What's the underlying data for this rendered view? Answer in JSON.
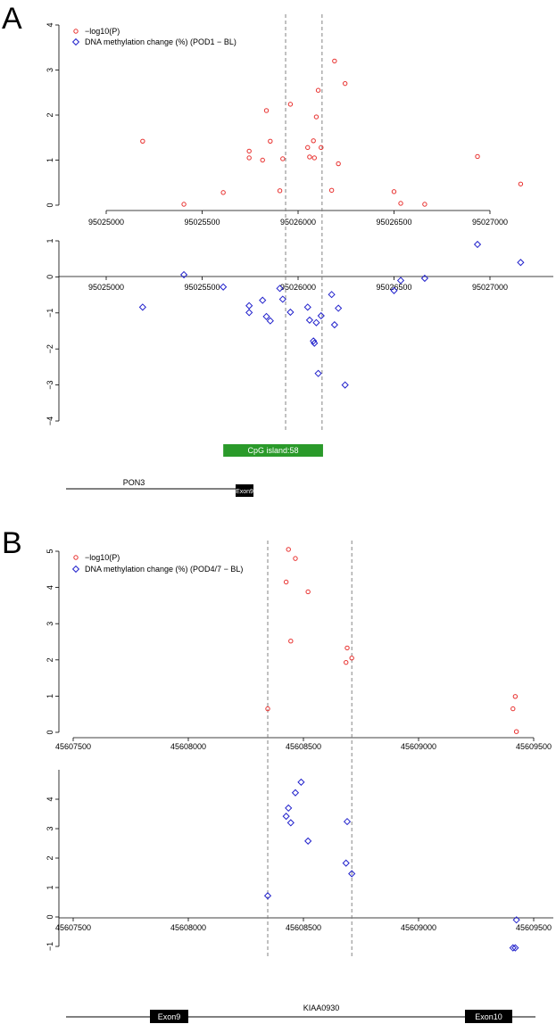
{
  "chart_data": [
    {
      "panel": "A",
      "type": "scatter",
      "title": "",
      "series": [
        {
          "name": "−log10(P)",
          "color": "#e8302e",
          "marker": "circle",
          "points": [
            [
              95025190,
              1.42
            ],
            [
              95025405,
              0.02
            ],
            [
              95025610,
              0.28
            ],
            [
              95025745,
              1.2
            ],
            [
              95025745,
              1.05
            ],
            [
              95025815,
              1.0
            ],
            [
              95025835,
              2.1
            ],
            [
              95025855,
              1.42
            ],
            [
              95025905,
              0.32
            ],
            [
              95025920,
              1.03
            ],
            [
              95025960,
              2.24
            ],
            [
              95026050,
              1.28
            ],
            [
              95026060,
              1.07
            ],
            [
              95026080,
              1.43
            ],
            [
              95026085,
              1.05
            ],
            [
              95026095,
              1.96
            ],
            [
              95026105,
              2.55
            ],
            [
              95026120,
              1.28
            ],
            [
              95026175,
              0.33
            ],
            [
              95026190,
              3.2
            ],
            [
              95026210,
              0.92
            ],
            [
              95026245,
              2.7
            ],
            [
              95026500,
              0.3
            ],
            [
              95026535,
              0.04
            ],
            [
              95026660,
              0.02
            ],
            [
              95026935,
              1.08
            ],
            [
              95027160,
              0.47
            ]
          ]
        },
        {
          "name": "DNA methylation change (%) (POD1 − BL)",
          "color": "#2222cc",
          "marker": "diamond",
          "points": [
            [
              95025190,
              -0.84
            ],
            [
              95025405,
              0.06
            ],
            [
              95025610,
              -0.28
            ],
            [
              95025745,
              -0.8
            ],
            [
              95025745,
              -0.99
            ],
            [
              95025815,
              -0.65
            ],
            [
              95025835,
              -1.1
            ],
            [
              95025855,
              -1.22
            ],
            [
              95025905,
              -0.32
            ],
            [
              95025920,
              -0.62
            ],
            [
              95025960,
              -0.98
            ],
            [
              95026050,
              -0.84
            ],
            [
              95026060,
              -1.2
            ],
            [
              95026080,
              -1.78
            ],
            [
              95026085,
              -1.84
            ],
            [
              95026095,
              -1.27
            ],
            [
              95026105,
              -2.68
            ],
            [
              95026120,
              -1.08
            ],
            [
              95026175,
              -0.49
            ],
            [
              95026190,
              -1.33
            ],
            [
              95026210,
              -0.87
            ],
            [
              95026245,
              -3.0
            ],
            [
              95026500,
              -0.38
            ],
            [
              95026535,
              -0.1
            ],
            [
              95026660,
              -0.04
            ],
            [
              95026935,
              0.9
            ],
            [
              95027160,
              0.4
            ]
          ]
        }
      ],
      "x_ticks": [
        "95025000",
        "95025500",
        "95026000",
        "95026500",
        "95027000"
      ],
      "xlim": [
        94024700,
        95027250
      ],
      "top_ylim": [
        0,
        4
      ],
      "top_yticks": [
        "0",
        "1",
        "2",
        "3",
        "4"
      ],
      "bottom_ylim": [
        -4,
        1
      ],
      "bottom_yticks": [
        "−4",
        "−3",
        "−2",
        "−1",
        "0",
        "1"
      ],
      "dashed_lines_x": [
        95025935,
        95026125
      ],
      "cpg_island": {
        "label": "CpG island:58",
        "start": 95025610,
        "end": 95026130,
        "color": "#2a9a2a"
      },
      "gene": {
        "name": "PON3",
        "line_start": 95024700,
        "line_end": 95025750,
        "exon_label": "Exon9",
        "exon_start": 95025680,
        "exon_end": 95025760
      },
      "legend_placement": "top-left"
    },
    {
      "panel": "B",
      "type": "scatter",
      "title": "",
      "series": [
        {
          "name": "−log10(P)",
          "color": "#e8302e",
          "marker": "circle",
          "points": [
            [
              45608345,
              0.65
            ],
            [
              45608425,
              4.15
            ],
            [
              45608435,
              5.05
            ],
            [
              45608445,
              2.52
            ],
            [
              45608465,
              4.8
            ],
            [
              45608520,
              3.88
            ],
            [
              45608685,
              1.93
            ],
            [
              45608690,
              2.33
            ],
            [
              45608710,
              2.05
            ],
            [
              45609410,
              0.65
            ],
            [
              45609420,
              0.99
            ],
            [
              45609425,
              0.02
            ]
          ]
        },
        {
          "name": "DNA methylation change (%) (POD4/7 − BL)",
          "color": "#2222cc",
          "marker": "diamond",
          "points": [
            [
              45608345,
              0.72
            ],
            [
              45608425,
              3.42
            ],
            [
              45608435,
              3.7
            ],
            [
              45608445,
              3.2
            ],
            [
              45608465,
              4.22
            ],
            [
              45608490,
              4.58
            ],
            [
              45608520,
              2.58
            ],
            [
              45608685,
              1.83
            ],
            [
              45608690,
              3.24
            ],
            [
              45608710,
              1.47
            ],
            [
              45609410,
              -1.05
            ],
            [
              45609420,
              -1.05
            ],
            [
              45609425,
              -0.1
            ]
          ]
        }
      ],
      "x_ticks": [
        "45607500",
        "45608000",
        "45608500",
        "45609000",
        "45609500"
      ],
      "xlim": [
        45607440,
        45609600
      ],
      "top_ylim": [
        0,
        5
      ],
      "top_yticks": [
        "0",
        "1",
        "2",
        "3",
        "4",
        "5"
      ],
      "bottom_ylim": [
        -1,
        5
      ],
      "bottom_yticks": [
        "−1",
        "0",
        "1",
        "2",
        "3",
        "4"
      ],
      "dashed_lines_x": [
        45608345,
        45608710
      ],
      "gene": {
        "name": "KIAA0930",
        "line_start": 45607440,
        "line_end": 45609600,
        "exons": [
          {
            "label": "Exon9",
            "start": 45607780,
            "end": 45608050
          },
          {
            "label": "Exon10",
            "start": 45609300,
            "end": 45609580
          }
        ]
      },
      "legend_placement": "top-left"
    }
  ]
}
